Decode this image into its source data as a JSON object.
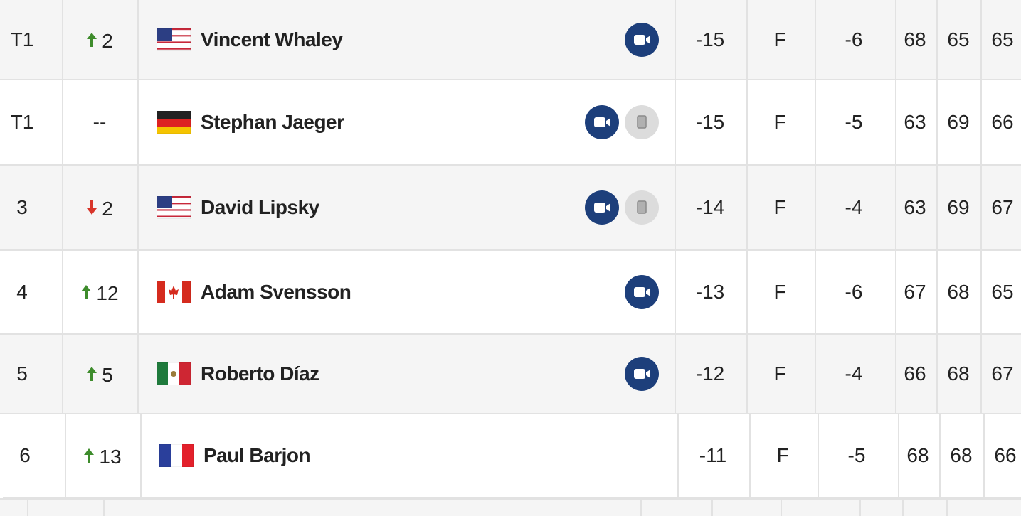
{
  "leaderboard": {
    "rows": [
      {
        "pos": "T1",
        "move": "2",
        "move_dir": "up",
        "country": "usa",
        "player": "Vincent Whaley",
        "video": true,
        "scorecard": false,
        "total": "-15",
        "thru": "F",
        "today": "-6",
        "r1": "68",
        "r2": "65",
        "r3": "65"
      },
      {
        "pos": "T1",
        "move": "--",
        "country": "germany",
        "player": "Stephan Jaeger",
        "video": true,
        "scorecard": true,
        "total": "-15",
        "thru": "F",
        "today": "-5",
        "r1": "63",
        "r2": "69",
        "r3": "66"
      },
      {
        "pos": "3",
        "move": "2",
        "move_dir": "down",
        "country": "usa",
        "player": "David Lipsky",
        "video": true,
        "scorecard": true,
        "total": "-14",
        "thru": "F",
        "today": "-4",
        "r1": "63",
        "r2": "69",
        "r3": "67"
      },
      {
        "pos": "4",
        "move": "12",
        "move_dir": "up",
        "country": "canada",
        "player": "Adam Svensson",
        "video": true,
        "scorecard": false,
        "total": "-13",
        "thru": "F",
        "today": "-6",
        "r1": "67",
        "r2": "68",
        "r3": "65"
      },
      {
        "pos": "5",
        "move": "5",
        "move_dir": "up",
        "country": "mexico",
        "player": "Roberto Díaz",
        "video": true,
        "scorecard": false,
        "total": "-12",
        "thru": "F",
        "today": "-4",
        "r1": "66",
        "r2": "68",
        "r3": "67"
      },
      {
        "pos": "6",
        "move": "13",
        "move_dir": "up",
        "country": "france",
        "player": "Paul Barjon",
        "video": false,
        "scorecard": false,
        "total": "-11",
        "thru": "F",
        "today": "-5",
        "r1": "68",
        "r2": "68",
        "r3": "66"
      }
    ]
  }
}
